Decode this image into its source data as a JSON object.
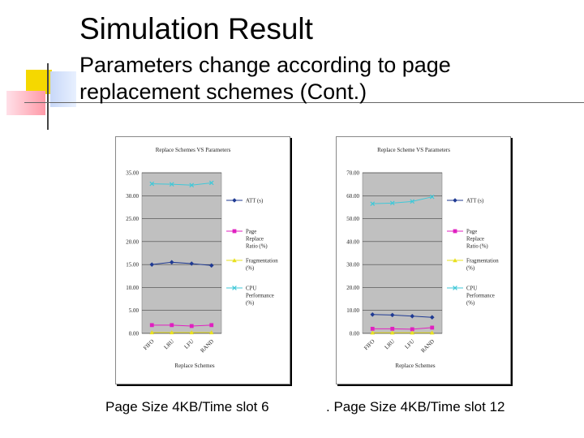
{
  "slide": {
    "title": "Simulation Result",
    "subtitle": "Parameters change according to page replacement schemes (Cont.)",
    "captions": [
      "Page Size 4KB/Time slot 6",
      ". Page Size 4KB/Time slot 12"
    ]
  },
  "chart_data": [
    {
      "type": "line",
      "title": "Replace Schemes VS Parameters",
      "xlabel": "Replace Schemes",
      "ylabel": "",
      "categories": [
        "FIFO",
        "LRU",
        "LFU",
        "RAND"
      ],
      "ylim": [
        0,
        35
      ],
      "yticks": [
        "0.00",
        "5.00",
        "10.00",
        "15.00",
        "20.00",
        "25.00",
        "30.00",
        "35.00"
      ],
      "ytick_values": [
        0,
        5,
        10,
        15,
        20,
        25,
        30,
        35
      ],
      "grid": true,
      "legend": "right",
      "series": [
        {
          "name": "ATT (s)",
          "color": "#1f3a93",
          "marker": "diamond",
          "values": [
            15.0,
            15.5,
            15.2,
            14.8
          ]
        },
        {
          "name": "Page Replace Ratio (%)",
          "color": "#e020c0",
          "marker": "square",
          "values": [
            1.8,
            1.8,
            1.6,
            1.8
          ]
        },
        {
          "name": "Fragmentation (%)",
          "color": "#e8e020",
          "marker": "triangle",
          "values": [
            0.2,
            0.2,
            0.2,
            0.2
          ]
        },
        {
          "name": "CPU Performance (%)",
          "color": "#40c8d8",
          "marker": "x",
          "values": [
            32.6,
            32.5,
            32.3,
            32.8
          ]
        }
      ]
    },
    {
      "type": "line",
      "title": "Replace Scheme VS Parameters",
      "xlabel": "Replace Schemes",
      "ylabel": "",
      "categories": [
        "FIFO",
        "LRU",
        "LFU",
        "RAND"
      ],
      "ylim": [
        0,
        70
      ],
      "yticks": [
        "0.00",
        "10.00",
        "20.00",
        "30.00",
        "40.00",
        "50.00",
        "60.00",
        "70.00"
      ],
      "ytick_values": [
        0,
        10,
        20,
        30,
        40,
        50,
        60,
        70
      ],
      "grid": true,
      "legend": "right",
      "series": [
        {
          "name": "ATT (s)",
          "color": "#1f3a93",
          "marker": "diamond",
          "values": [
            8.2,
            8.0,
            7.5,
            7.0
          ]
        },
        {
          "name": "Page Replace Ratio (%)",
          "color": "#e020c0",
          "marker": "square",
          "values": [
            2.0,
            2.0,
            1.8,
            2.5
          ]
        },
        {
          "name": "Fragmentation (%)",
          "color": "#e8e020",
          "marker": "triangle",
          "values": [
            0.3,
            0.3,
            0.3,
            0.3
          ]
        },
        {
          "name": "CPU Performance (%)",
          "color": "#40c8d8",
          "marker": "x",
          "values": [
            56.5,
            56.8,
            57.5,
            59.5
          ]
        }
      ]
    }
  ]
}
